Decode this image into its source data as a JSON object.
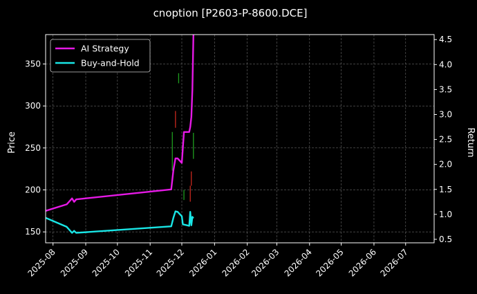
{
  "chart_data": {
    "type": "line",
    "title": "cnoption [P2603-P-8600.DCE]",
    "ylabel": "Price",
    "y2label": "Return",
    "x_ticks": [
      "2025-08",
      "2025-09",
      "2025-10",
      "2025-11",
      "2025-12",
      "2026-01",
      "2026-02",
      "2026-03",
      "2026-04",
      "2026-05",
      "2026-06",
      "2026-07"
    ],
    "xlim": [
      "2025-07-25",
      "2026-07-28"
    ],
    "ylim": [
      137,
      385
    ],
    "y_ticks": [
      150,
      200,
      250,
      300,
      350
    ],
    "y2lim": [
      0.43,
      4.6
    ],
    "y2_ticks": [
      0.5,
      1.0,
      1.5,
      2.0,
      2.5,
      3.0,
      3.5,
      4.0,
      4.5
    ],
    "grid": true,
    "legend_position": "upper-left",
    "series": [
      {
        "name": "AI Strategy",
        "color": "#e619e6",
        "axis": "return",
        "points": [
          [
            "2025-07-25",
            1.07
          ],
          [
            "2025-08-14",
            1.2
          ],
          [
            "2025-08-19",
            1.32
          ],
          [
            "2025-08-21",
            1.25
          ],
          [
            "2025-08-23",
            1.3
          ],
          [
            "2025-11-21",
            1.5
          ],
          [
            "2025-11-23",
            1.88
          ],
          [
            "2025-11-25",
            2.12
          ],
          [
            "2025-11-27",
            2.12
          ],
          [
            "2025-12-01",
            2.03
          ],
          [
            "2025-12-03",
            2.65
          ],
          [
            "2025-12-08",
            2.65
          ],
          [
            "2025-12-09",
            2.75
          ],
          [
            "2025-12-10",
            2.95
          ],
          [
            "2025-12-11",
            3.5
          ],
          [
            "2025-12-12",
            4.6
          ]
        ]
      },
      {
        "name": "Buy-and-Hold",
        "color": "#19e6e6",
        "axis": "return",
        "points": [
          [
            "2025-07-25",
            0.93
          ],
          [
            "2025-08-14",
            0.75
          ],
          [
            "2025-08-19",
            0.63
          ],
          [
            "2025-08-21",
            0.67
          ],
          [
            "2025-08-23",
            0.63
          ],
          [
            "2025-11-21",
            0.76
          ],
          [
            "2025-11-23",
            0.93
          ],
          [
            "2025-11-25",
            1.06
          ],
          [
            "2025-11-27",
            1.05
          ],
          [
            "2025-12-01",
            0.96
          ],
          [
            "2025-12-02",
            0.8
          ],
          [
            "2025-12-06",
            0.78
          ],
          [
            "2025-12-08",
            0.77
          ],
          [
            "2025-12-09",
            1.05
          ],
          [
            "2025-12-10",
            0.78
          ],
          [
            "2025-12-11",
            0.95
          ],
          [
            "2025-12-12",
            0.92
          ]
        ]
      }
    ],
    "price_bars": [
      {
        "date": "2025-11-22",
        "low": 223,
        "high": 269,
        "color": "#1f9e1f"
      },
      {
        "date": "2025-11-25",
        "low": 274,
        "high": 294,
        "color": "#c8281e"
      },
      {
        "date": "2025-11-28",
        "low": 327,
        "high": 339,
        "color": "#1f9e1f"
      },
      {
        "date": "2025-12-03",
        "low": 188,
        "high": 200,
        "color": "#1f9e1f"
      },
      {
        "date": "2025-12-09",
        "low": 186,
        "high": 205,
        "color": "#c8281e"
      },
      {
        "date": "2025-12-10",
        "low": 205,
        "high": 222,
        "color": "#c8281e"
      },
      {
        "date": "2025-12-12",
        "low": 237,
        "high": 268,
        "color": "#1f9e1f"
      }
    ]
  }
}
